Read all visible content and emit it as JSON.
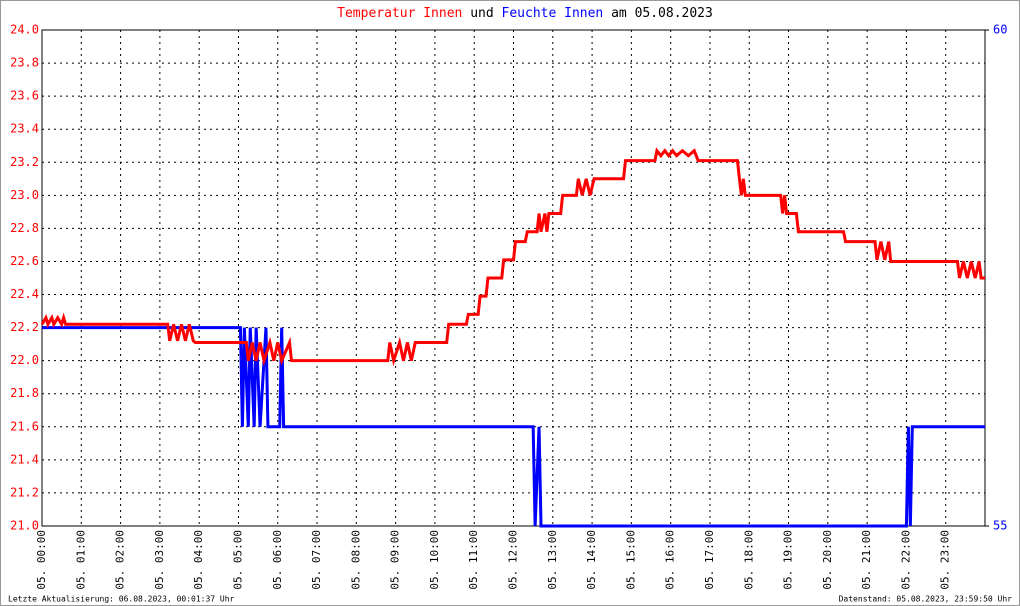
{
  "chart_data": {
    "type": "line",
    "title": [
      "Temperatur Innen",
      "und",
      "Feuchte Innen",
      "am 05.08.2023"
    ],
    "footer": [
      "Letzte Aktualisierung: 06.08.2023, 00:01:37 Uhr",
      "Datenstand: 05.08.2023, 23:59:50 Uhr"
    ],
    "xlim": [
      0,
      24
    ],
    "xticks": [
      {
        "value": 0,
        "label": "05. 00:00"
      },
      {
        "value": 1,
        "label": "05. 01:00"
      },
      {
        "value": 2,
        "label": "05. 02:00"
      },
      {
        "value": 3,
        "label": "05. 03:00"
      },
      {
        "value": 4,
        "label": "05. 04:00"
      },
      {
        "value": 5,
        "label": "05. 05:00"
      },
      {
        "value": 6,
        "label": "05. 06:00"
      },
      {
        "value": 7,
        "label": "05. 07:00"
      },
      {
        "value": 8,
        "label": "05. 08:00"
      },
      {
        "value": 9,
        "label": "05. 09:00"
      },
      {
        "value": 10,
        "label": "05. 10:00"
      },
      {
        "value": 11,
        "label": "05. 11:00"
      },
      {
        "value": 12,
        "label": "05. 12:00"
      },
      {
        "value": 13,
        "label": "05. 13:00"
      },
      {
        "value": 14,
        "label": "05. 14:00"
      },
      {
        "value": 15,
        "label": "05. 15:00"
      },
      {
        "value": 16,
        "label": "05. 16:00"
      },
      {
        "value": 17,
        "label": "05. 17:00"
      },
      {
        "value": 18,
        "label": "05. 18:00"
      },
      {
        "value": 19,
        "label": "05. 19:00"
      },
      {
        "value": 20,
        "label": "05. 20:00"
      },
      {
        "value": 21,
        "label": "05. 21:00"
      },
      {
        "value": 22,
        "label": "05. 22:00"
      },
      {
        "value": 23,
        "label": "05. 23:00"
      }
    ],
    "ylim": [
      21,
      24
    ],
    "yticks": [
      {
        "value": 21,
        "label": "21.0"
      },
      21.2,
      21.4,
      21.6,
      21.8,
      {
        "value": 22,
        "label": "22.0"
      },
      22.2,
      22.4,
      22.6,
      22.8,
      {
        "value": 23,
        "label": "23.0"
      },
      23.2,
      23.4,
      23.6,
      23.8,
      {
        "value": 24,
        "label": "24.0"
      }
    ],
    "y2lim": [
      55,
      60
    ],
    "y2ticks": [
      55,
      60
    ],
    "grid": true,
    "series": [
      {
        "name": "Temperatur Innen",
        "color": "#ff0000",
        "x": [
          0,
          0.1,
          0.15,
          0.25,
          0.3,
          0.4,
          0.5,
          0.55,
          0.6,
          3.2,
          3.25,
          3.35,
          3.45,
          3.55,
          3.65,
          3.75,
          3.85,
          3.9,
          5.2,
          5.25,
          5.35,
          5.45,
          5.55,
          5.65,
          5.8,
          5.9,
          6.0,
          6.1,
          6.3,
          6.35,
          8.8,
          8.85,
          8.95,
          9.1,
          9.2,
          9.3,
          9.4,
          9.5,
          9.6,
          10.3,
          10.35,
          10.8,
          10.85,
          11.1,
          11.15,
          11.3,
          11.35,
          11.7,
          11.75,
          12.0,
          12.05,
          12.3,
          12.35,
          12.6,
          12.65,
          12.7,
          12.8,
          12.85,
          12.9,
          13.2,
          13.25,
          13.6,
          13.65,
          13.75,
          13.85,
          13.95,
          14.05,
          14.8,
          14.85,
          15.6,
          15.65,
          15.75,
          15.85,
          15.95,
          16.05,
          16.15,
          16.3,
          16.45,
          16.6,
          16.7,
          17.7,
          17.75,
          17.8,
          17.85,
          17.9,
          18.8,
          18.85,
          18.9,
          18.95,
          19.2,
          19.25,
          20.4,
          20.45,
          21.2,
          21.25,
          21.35,
          21.45,
          21.55,
          21.6,
          23.3,
          23.35,
          23.45,
          23.55,
          23.65,
          23.75,
          23.85,
          23.9,
          24
        ],
        "values": [
          22.22,
          22.26,
          22.22,
          22.26,
          22.22,
          22.26,
          22.22,
          22.26,
          22.22,
          22.22,
          22.12,
          22.22,
          22.12,
          22.22,
          22.12,
          22.22,
          22.12,
          22.11,
          22.11,
          22.0,
          22.11,
          22.0,
          22.11,
          22.0,
          22.11,
          22.0,
          22.11,
          22.0,
          22.11,
          22.0,
          22.0,
          22.11,
          22.0,
          22.11,
          22.0,
          22.11,
          22.0,
          22.11,
          22.11,
          22.11,
          22.22,
          22.22,
          22.28,
          22.28,
          22.39,
          22.39,
          22.5,
          22.5,
          22.61,
          22.61,
          22.72,
          22.72,
          22.78,
          22.78,
          22.89,
          22.78,
          22.89,
          22.78,
          22.89,
          22.89,
          23.0,
          23.0,
          23.1,
          23.0,
          23.1,
          23.0,
          23.1,
          23.1,
          23.21,
          23.21,
          23.27,
          23.24,
          23.27,
          23.24,
          23.27,
          23.24,
          23.27,
          23.24,
          23.27,
          23.21,
          23.21,
          23.1,
          23.0,
          23.1,
          23.0,
          23.0,
          22.89,
          23.0,
          22.89,
          22.89,
          22.78,
          22.78,
          22.72,
          22.72,
          22.61,
          22.72,
          22.61,
          22.72,
          22.6,
          22.6,
          22.5,
          22.6,
          22.5,
          22.6,
          22.5,
          22.6,
          22.5,
          22.5
        ]
      },
      {
        "name": "Feuchte Innen",
        "color": "#0000ff",
        "axis": "y2",
        "x": [
          0,
          5.05,
          5.1,
          5.15,
          5.25,
          5.3,
          5.4,
          5.45,
          5.55,
          5.7,
          5.75,
          6.05,
          6.1,
          6.15,
          12.5,
          12.55,
          12.65,
          12.7,
          22.0,
          22.05,
          22.1,
          22.15,
          24
        ],
        "values": [
          57,
          57,
          56,
          57,
          56,
          57,
          56,
          57,
          56,
          57,
          56,
          56,
          57,
          56,
          56,
          55,
          56,
          55,
          55,
          56,
          55,
          56,
          56
        ]
      }
    ]
  }
}
